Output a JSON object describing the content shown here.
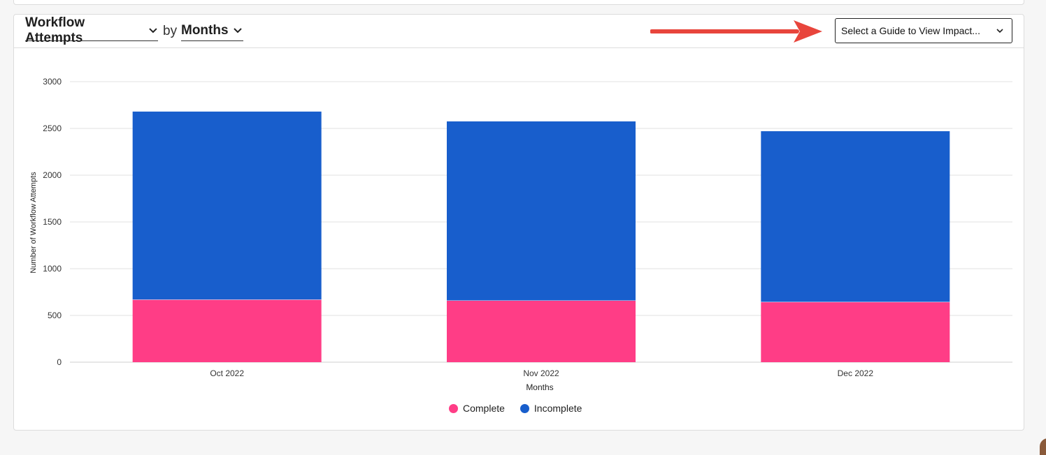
{
  "header": {
    "metric_label": "Workflow Attempts",
    "by_text": "by",
    "period_label": "Months",
    "guide_select_text": "Select a Guide to View Impact..."
  },
  "colors": {
    "complete": "#ff3d86",
    "incomplete": "#185ecc",
    "annotation_arrow": "#e8453c"
  },
  "icons": {
    "metric_chevron": "chevron-down-icon",
    "period_chevron": "chevron-down-icon",
    "guide_chevron": "chevron-down-icon",
    "annotation": "red-arrow-icon"
  },
  "chart_data": {
    "type": "bar",
    "stacked": true,
    "categories": [
      "Oct 2022",
      "Nov 2022",
      "Dec 2022"
    ],
    "series": [
      {
        "name": "Complete",
        "color": "#ff3d86",
        "values": [
          670,
          660,
          645
        ]
      },
      {
        "name": "Incomplete",
        "color": "#185ecc",
        "values": [
          2010,
          1915,
          1825
        ]
      }
    ],
    "xlabel": "Months",
    "ylabel": "Number of Workflow Attempts",
    "ylim": [
      0,
      3000
    ],
    "yticks": [
      0,
      500,
      1000,
      1500,
      2000,
      2500,
      3000
    ],
    "grid": true,
    "legend_position": "bottom"
  }
}
